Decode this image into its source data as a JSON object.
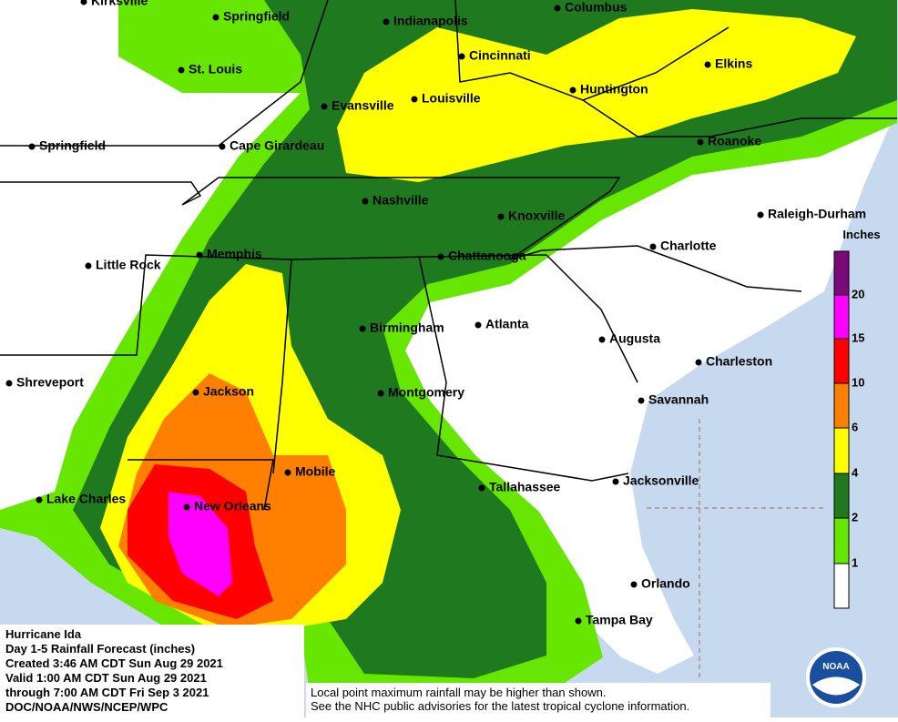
{
  "cities": [
    "Kirksville",
    "Springfield",
    "Indianapolis",
    "Columbus",
    "St. Louis",
    "Cincinnati",
    "Elkins",
    "Huntington",
    "Evansville",
    "Louisville",
    "Springfield",
    "Cape Girardeau",
    "Roanoke",
    "Nashville",
    "Knoxville",
    "Raleigh-Durham",
    "Memphis",
    "Little Rock",
    "Chattanooga",
    "Charlotte",
    "Birmingham",
    "Atlanta",
    "Augusta",
    "Charleston",
    "Shreveport",
    "Jackson",
    "Montgomery",
    "Savannah",
    "Mobile",
    "Tallahassee",
    "Jacksonville",
    "Lake Charles",
    "New Orleans",
    "Orlando",
    "Tampa Bay"
  ],
  "legend": {
    "title": "Inches",
    "values": [
      20,
      15,
      10,
      6,
      4,
      2,
      1
    ]
  },
  "info": {
    "lines": [
      "Hurricane Ida",
      "Day 1-5 Rainfall Forecast (inches)",
      "Created 3:46 AM CDT Sun Aug 29 2021",
      "Valid 1:00 AM CDT Sun Aug 29 2021",
      "through 7:00 AM CDT Fri Sep 3 2021",
      "DOC/NOAA/NWS/NCEP/WPC"
    ]
  },
  "notes": [
    "Local point maximum rainfall may be higher than shown.",
    "See the NHC public advisories for the latest tropical cyclone information."
  ],
  "logo": "NOAA"
}
